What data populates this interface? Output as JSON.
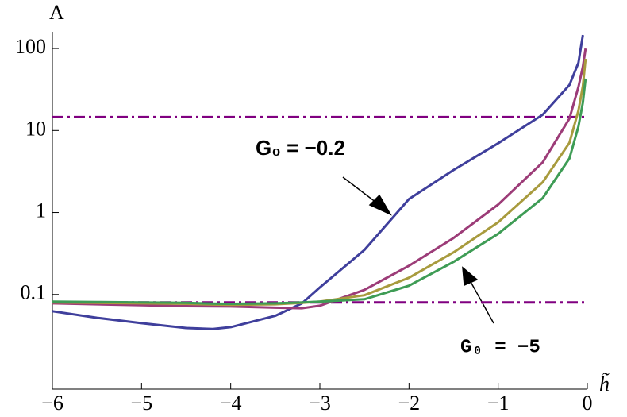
{
  "chart_data": {
    "type": "line",
    "log_y": true,
    "y_label": "A",
    "x_label": "h̃",
    "x": [
      -6,
      -5.5,
      -5,
      -4.5,
      -4.2,
      -4,
      -3.5,
      -3.2,
      -3,
      -2.5,
      -2,
      -1.5,
      -1,
      -0.5,
      -0.2,
      -0.1,
      -0.05,
      -0.02
    ],
    "series": [
      {
        "color": "#3f3f9c",
        "values": [
          0.0625,
          0.052,
          0.0447,
          0.039,
          0.038,
          0.04,
          0.055,
          0.078,
          0.122,
          0.35,
          1.46,
          3.3,
          7.0,
          15.6,
          36,
          67,
          146,
          null
        ]
      },
      {
        "color": "#9c3c78",
        "values": [
          0.078,
          0.076,
          0.074,
          0.072,
          0.0715,
          0.0714,
          0.069,
          0.068,
          0.073,
          0.114,
          0.224,
          0.489,
          1.25,
          4.1,
          14,
          34,
          60,
          100
        ]
      },
      {
        "color": "#a89b3e",
        "values": [
          0.08,
          0.079,
          0.078,
          0.077,
          0.0755,
          0.075,
          0.076,
          0.079,
          0.082,
          0.098,
          0.16,
          0.327,
          0.76,
          2.34,
          7.1,
          17.5,
          35,
          75
        ]
      },
      {
        "color": "#3e9c55",
        "values": [
          0.082,
          0.081,
          0.08,
          0.079,
          0.0775,
          0.077,
          0.078,
          0.08,
          0.082,
          0.0875,
          0.128,
          0.25,
          0.55,
          1.5,
          4.57,
          11.2,
          22,
          43
        ]
      }
    ],
    "hlines": [
      {
        "value": 14.6,
        "color": "#800080"
      },
      {
        "value": 0.08,
        "color": "#800080"
      }
    ],
    "annotations": [
      "G₀ = −0.2",
      "G₀ = −5"
    ],
    "xlim": [
      -6,
      0
    ],
    "xticks": [
      {
        "value": -6,
        "label": "−6"
      },
      {
        "value": -5,
        "label": "−5"
      },
      {
        "value": -4,
        "label": "−4"
      },
      {
        "value": -3,
        "label": "−3"
      },
      {
        "value": -2,
        "label": "−2"
      },
      {
        "value": -1,
        "label": "−1"
      },
      0
    ],
    "ylim": [
      0.007,
      160
    ],
    "yticks": [
      0.1,
      1,
      10,
      100
    ]
  }
}
